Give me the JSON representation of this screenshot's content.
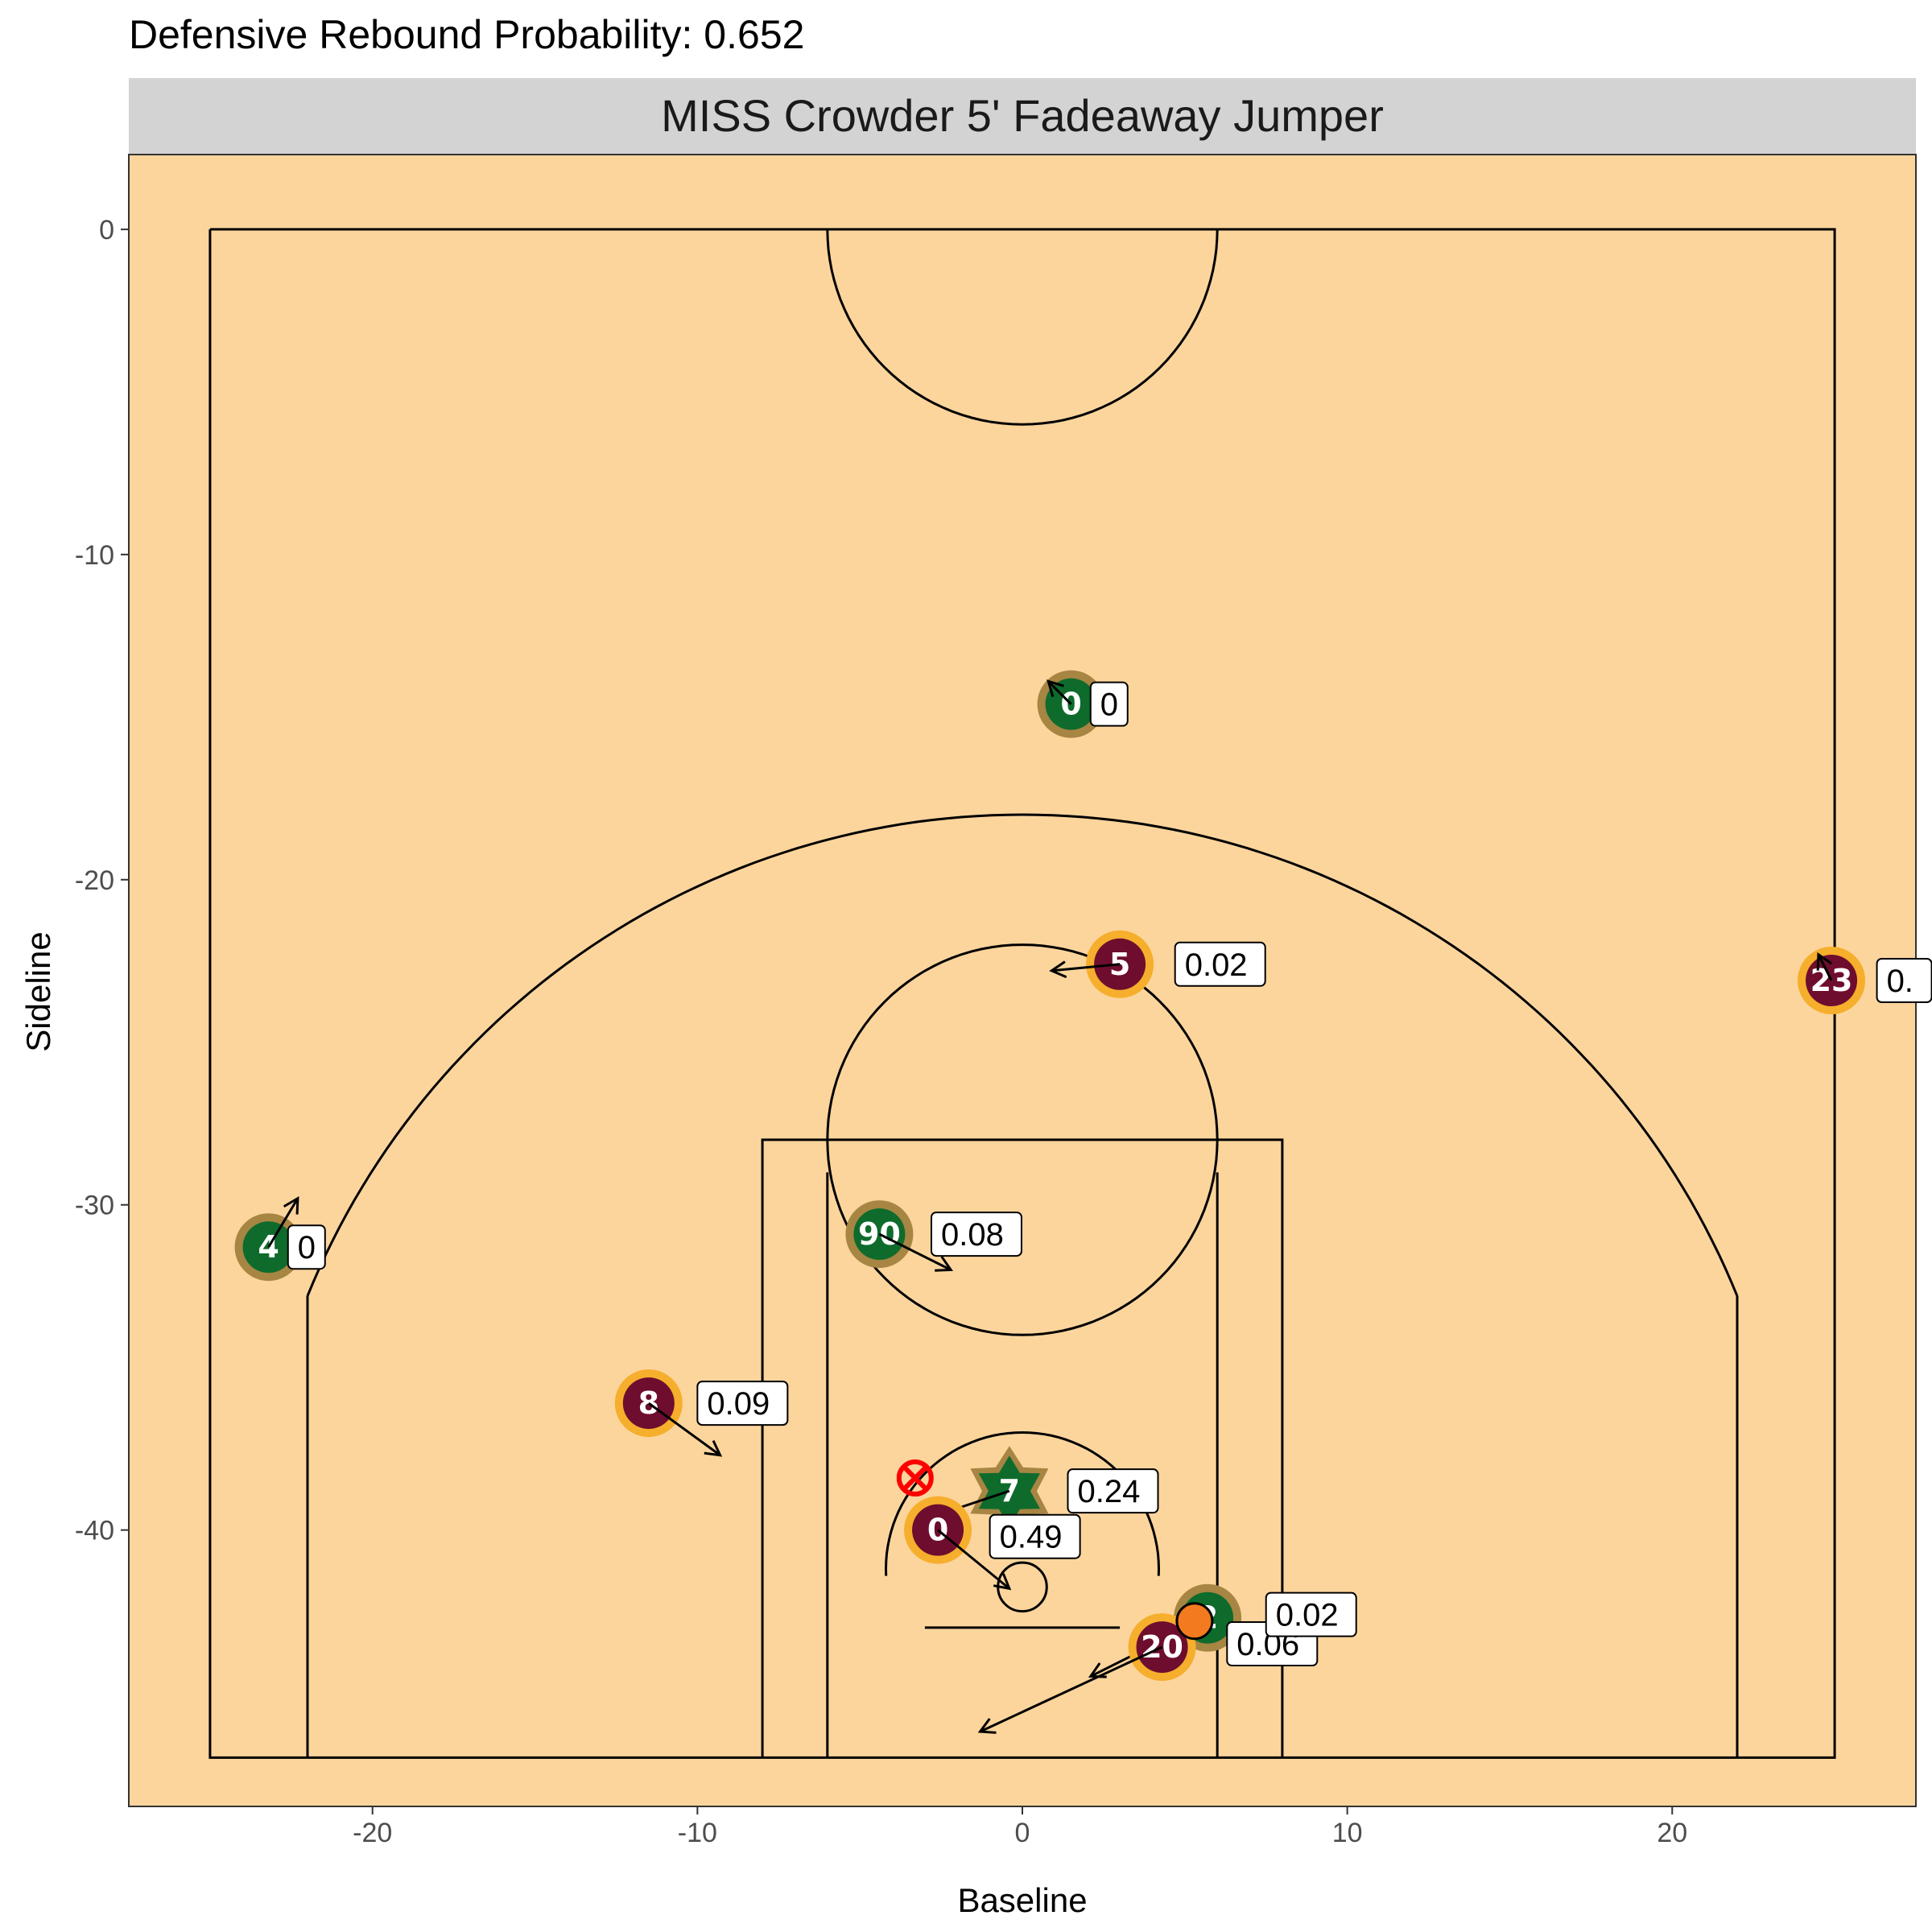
{
  "chart_data": {
    "type": "scatter",
    "title": "Defensive Rebound Probability: 0.652",
    "facet_label": "MISS Crowder 5' Fadeaway Jumper",
    "xlabel": "Baseline",
    "ylabel": "Sideline",
    "xlim": [
      -27.5,
      27.5
    ],
    "ylim": [
      -48.5,
      2.3
    ],
    "xticks": [
      -20,
      -10,
      0,
      10,
      20
    ],
    "yticks": [
      0,
      -10,
      -20,
      -30,
      -40
    ],
    "colors": {
      "court_bg": "#FCD59D",
      "strip_bg": "#D3D3D3",
      "team_green_fill": "#0E6B2C",
      "team_green_ring": "#A78543",
      "team_maroon_fill": "#6E0D2E",
      "team_maroon_ring": "#F6AE2D",
      "ball": "#F47A1F",
      "shot_marker": "#FF0000"
    },
    "players": [
      {
        "team": "green",
        "number": "0",
        "x": 1.5,
        "y": -14.6,
        "dx": -0.7,
        "dy": 0.7,
        "prob": "0",
        "lx": 2.1,
        "ly": -14.6
      },
      {
        "team": "green",
        "number": "4",
        "x": -23.2,
        "y": -31.3,
        "dx": 0.9,
        "dy": 1.5,
        "prob": "0",
        "lx": -22.6,
        "ly": -31.3
      },
      {
        "team": "green",
        "number": "90",
        "x": -4.4,
        "y": -30.9,
        "dx": 2.2,
        "dy": -1.1,
        "prob": "0.08",
        "lx": -2.8,
        "ly": -30.9
      },
      {
        "team": "green",
        "number": "7",
        "x": -0.4,
        "y": -38.8,
        "dx": -2.4,
        "dy": -0.8,
        "prob": "0.24",
        "lx": 1.4,
        "ly": -38.8
      },
      {
        "team": "green",
        "number": "2",
        "x": 5.7,
        "y": -42.7,
        "dx": -3.6,
        "dy": -1.8,
        "prob": "0.06",
        "lx": 6.3,
        "ly": -43.5
      },
      {
        "team": "maroon",
        "number": "5",
        "x": 3.0,
        "y": -22.6,
        "dx": -2.1,
        "dy": -0.2,
        "prob": "0.02",
        "lx": 4.7,
        "ly": -22.6
      },
      {
        "team": "maroon",
        "number": "23",
        "x": 24.9,
        "y": -23.1,
        "dx": -0.4,
        "dy": 0.8,
        "prob": "0.",
        "lx": 26.3,
        "ly": -23.1
      },
      {
        "team": "maroon",
        "number": "8",
        "x": -11.5,
        "y": -36.1,
        "dx": 2.2,
        "dy": -1.6,
        "prob": "0.09",
        "lx": -10.0,
        "ly": -36.1
      },
      {
        "team": "maroon",
        "number": "0",
        "x": -2.6,
        "y": -40.0,
        "dx": 2.2,
        "dy": -1.8,
        "prob": "0.49",
        "lx": -1.0,
        "ly": -40.2
      },
      {
        "team": "maroon",
        "number": "20",
        "x": 4.3,
        "y": -43.6,
        "dx": -5.6,
        "dy": -2.6,
        "prob": "0.02",
        "lx": 7.5,
        "ly": -42.6
      }
    ],
    "shooter_number": "7",
    "ball": {
      "x": 5.3,
      "y": -42.8
    },
    "shot_location": {
      "x": -3.3,
      "y": -38.4
    }
  }
}
